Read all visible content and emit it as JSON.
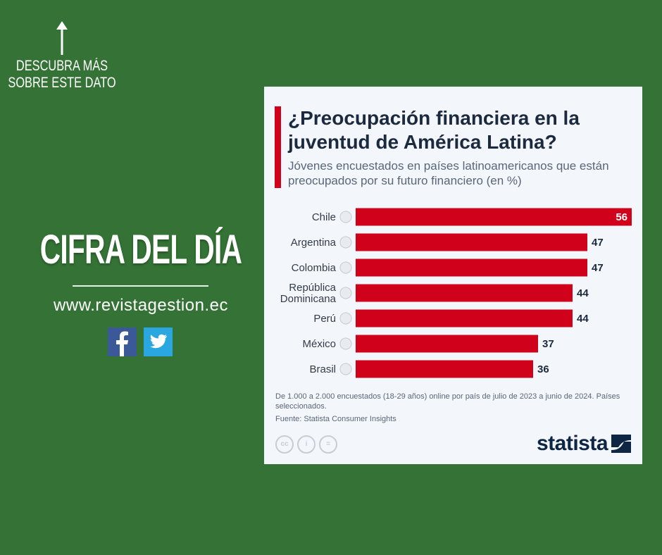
{
  "left_panel": {
    "cta": "DESCUBRA MÁS SOBRE ESTE DATO",
    "headline": "CIFRA DEL DÍA",
    "website": "www.revistagestion.ec",
    "social": [
      "facebook-icon",
      "twitter-icon"
    ]
  },
  "colors": {
    "background": "#347335",
    "bar": "#d0021b",
    "title": "#1b2a3e"
  },
  "chart_data": {
    "type": "bar",
    "orientation": "horizontal",
    "title": "¿Preocupación financiera en la juventud de América Latina?",
    "subtitle": "Jóvenes encuestados en países latinoamericanos que están preocupados por su futuro financiero (en %)",
    "categories": [
      "Chile",
      "Argentina",
      "Colombia",
      "República Dominicana",
      "Perú",
      "México",
      "Brasil"
    ],
    "category_lines": [
      [
        "Chile"
      ],
      [
        "Argentina"
      ],
      [
        "Colombia"
      ],
      [
        "República",
        "Dominicana"
      ],
      [
        "Perú"
      ],
      [
        "México"
      ],
      [
        "Brasil"
      ]
    ],
    "values": [
      56,
      47,
      47,
      44,
      44,
      37,
      36
    ],
    "xlim": [
      0,
      56
    ],
    "notes": "De 1.000 a 2.000 encuestados (18-29 años) online por país de julio de 2023 a junio de 2024. Países seleccionados.",
    "source": "Fuente: Statista Consumer Insights",
    "brand": "statista"
  }
}
